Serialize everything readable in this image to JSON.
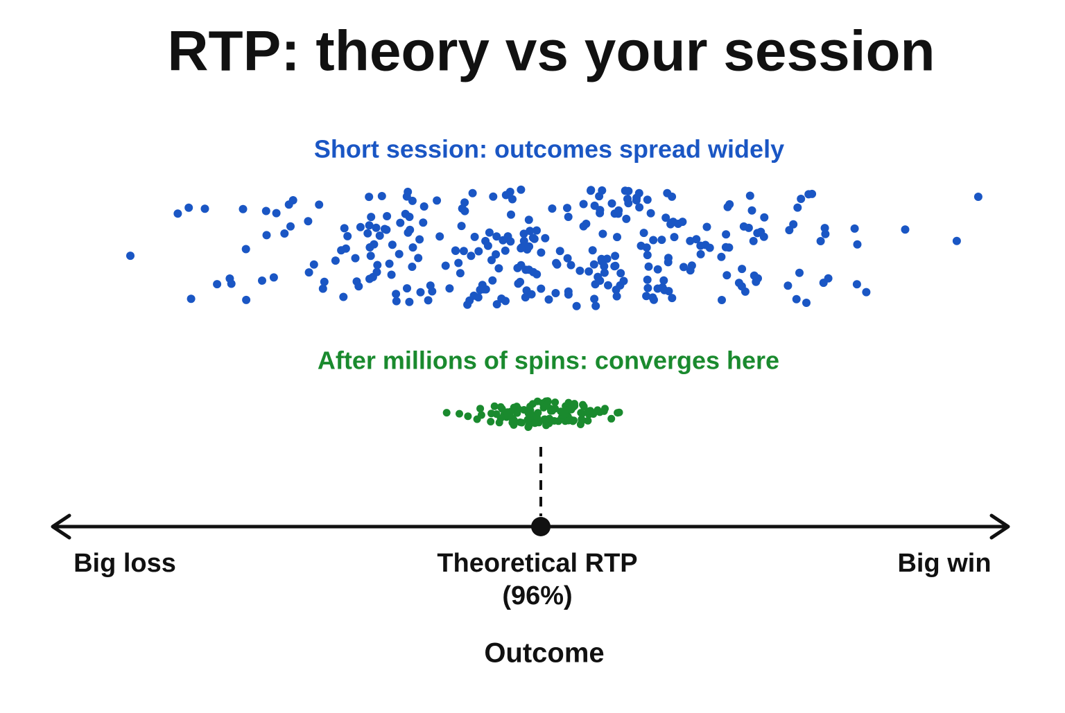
{
  "title": "RTP: theory vs your session",
  "short_session_label": "Short session: outcomes spread widely",
  "long_run_label": "After millions of spins: converges here",
  "axis": {
    "left_label": "Big loss",
    "center_label": [
      "Theoretical RTP",
      "(96%)"
    ],
    "right_label": "Big win",
    "title": "Outcome"
  }
}
